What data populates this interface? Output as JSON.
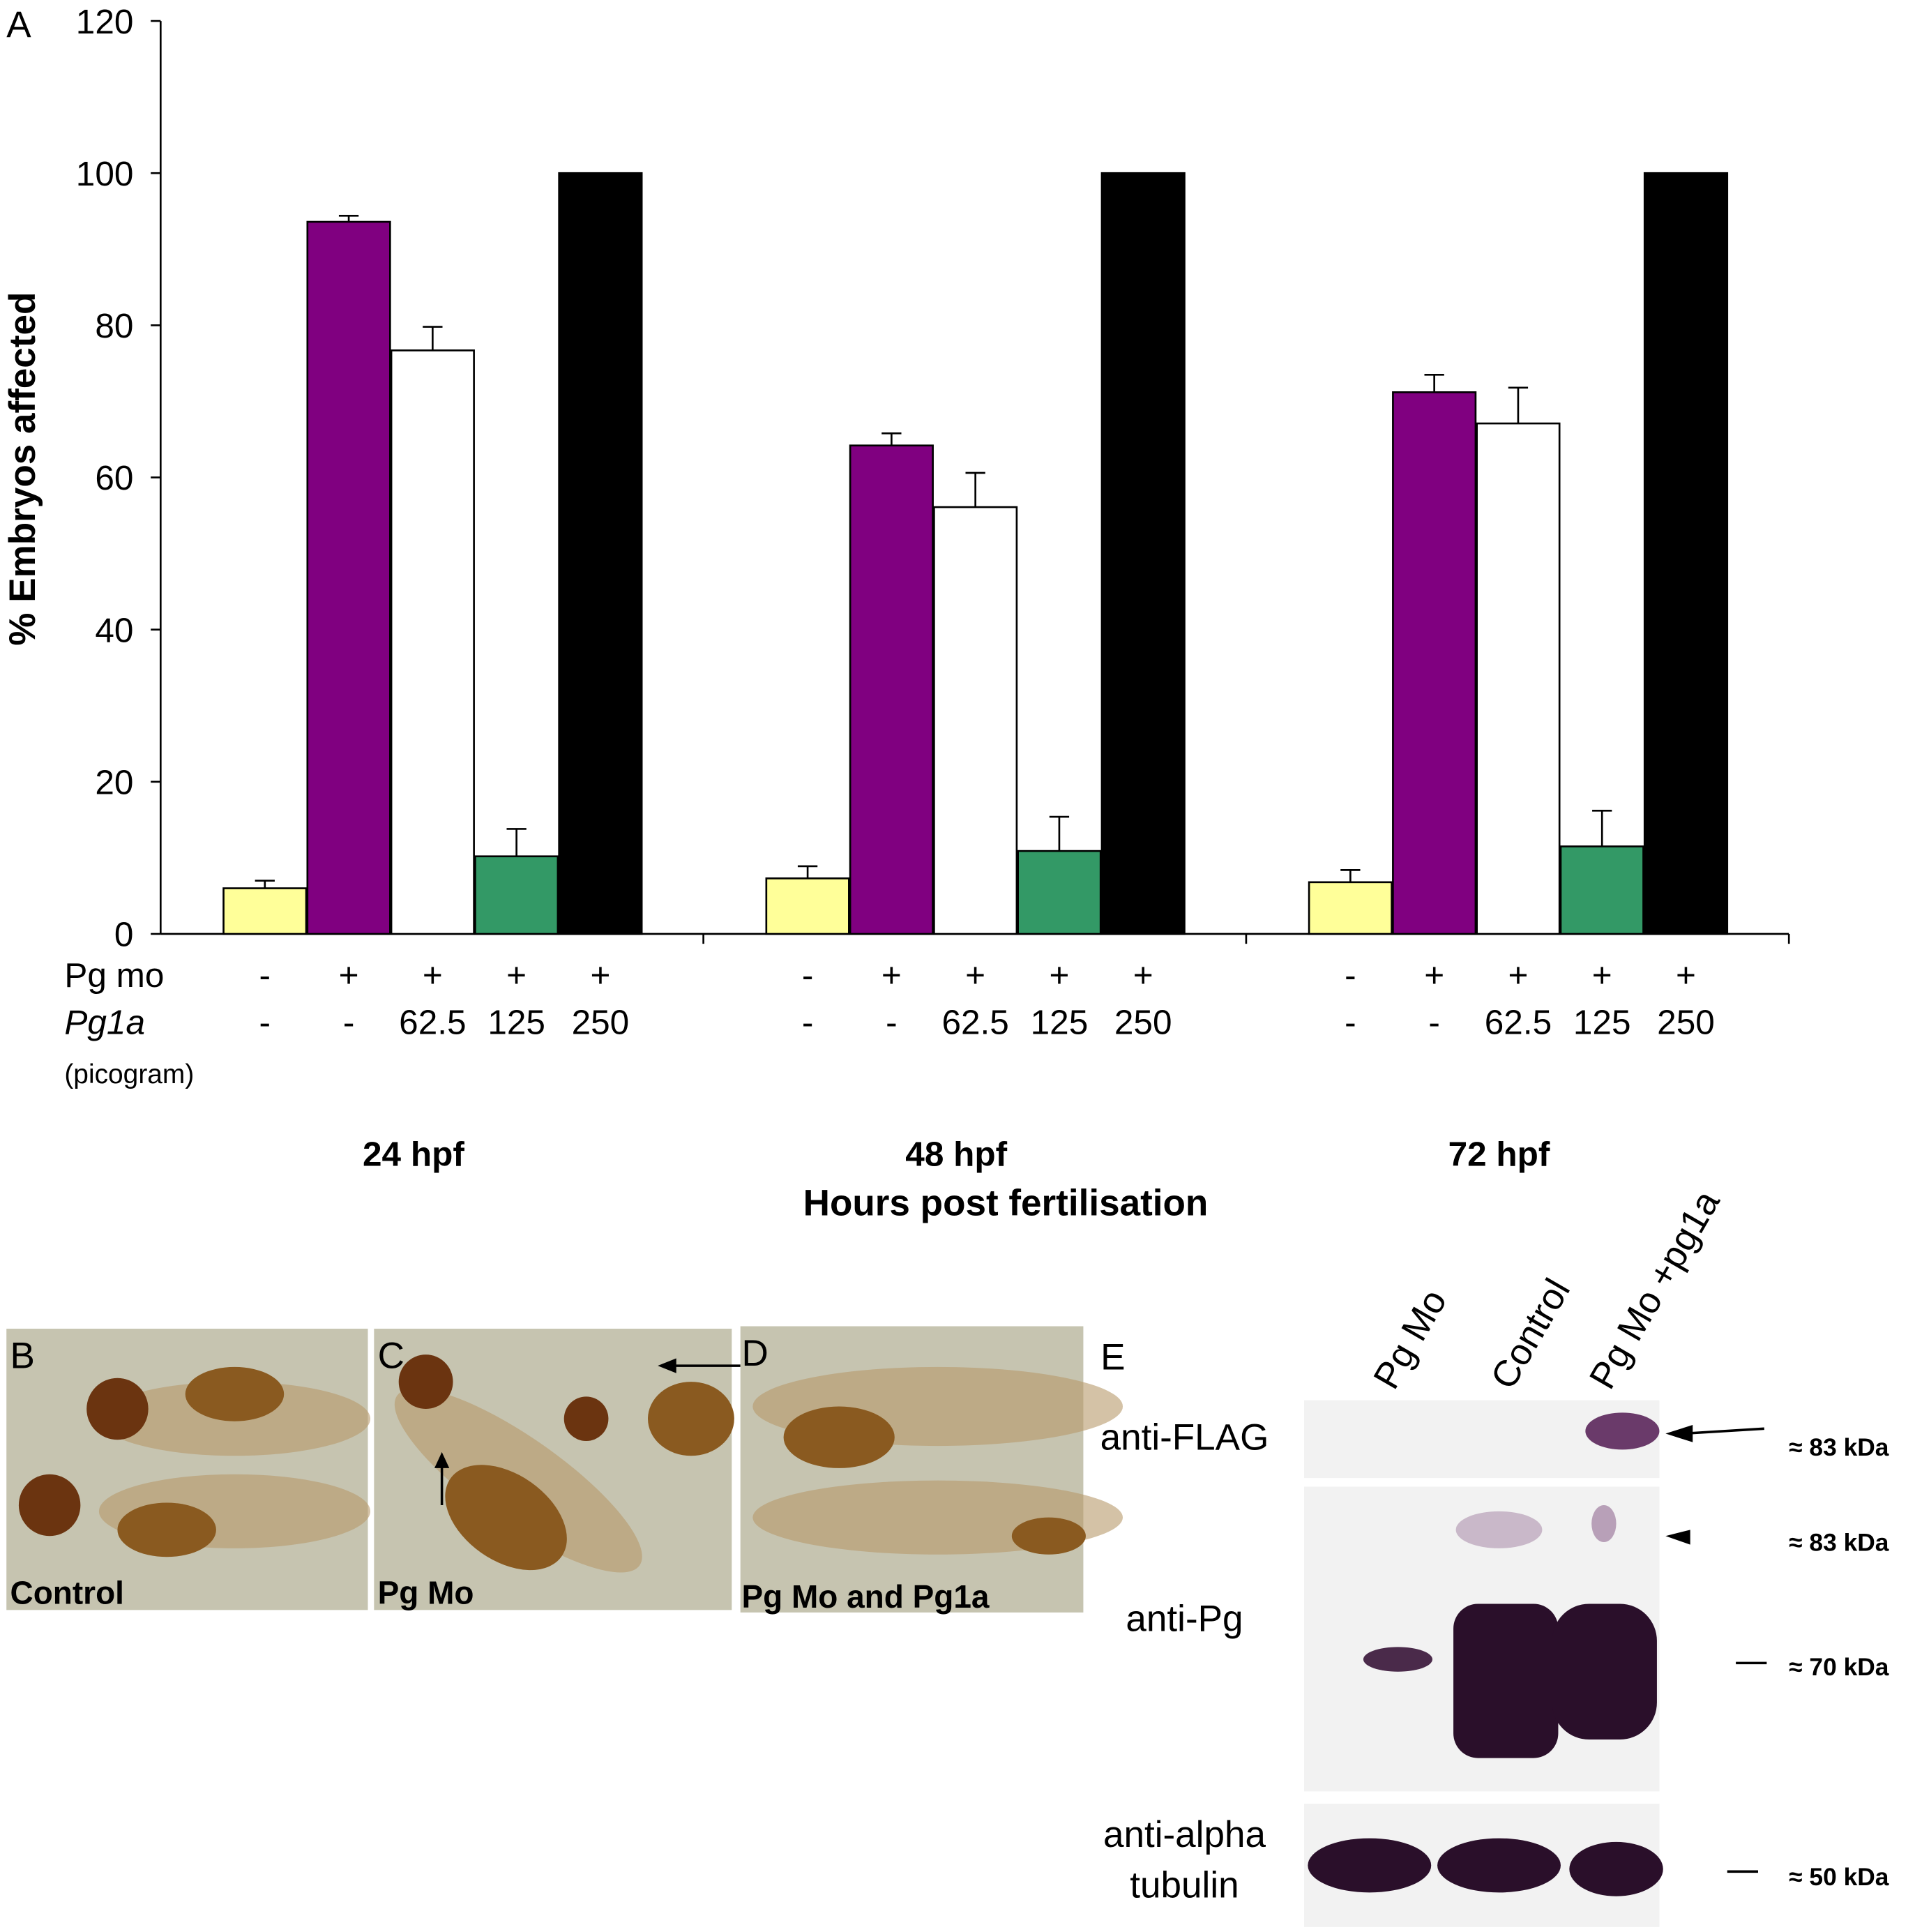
{
  "chart_data": {
    "type": "bar",
    "panel_label": "A",
    "ylabel": "% Embryos affected",
    "xlabel": "Hours post fertilisation",
    "categories": [
      "24 hpf",
      "48 hpf",
      "72 hpf"
    ],
    "series": [
      {
        "color": "#ffff99",
        "values": [
          6.0,
          7.3,
          6.8
        ],
        "errors": [
          1.0,
          1.6,
          1.6
        ]
      },
      {
        "color": "#800080",
        "values": [
          93.6,
          64.2,
          71.2
        ],
        "errors": [
          0.8,
          1.6,
          2.3
        ]
      },
      {
        "color": "#ffffff",
        "values": [
          76.7,
          56.1,
          67.1
        ],
        "errors": [
          3.1,
          4.5,
          4.7
        ]
      },
      {
        "color": "#339966",
        "values": [
          10.2,
          10.9,
          11.5
        ],
        "errors": [
          3.6,
          4.5,
          4.7
        ]
      },
      {
        "color": "#000000",
        "values": [
          100,
          100,
          100
        ],
        "errors": [
          null,
          null,
          null
        ]
      }
    ],
    "ylim": [
      0,
      120
    ],
    "yticks": [
      0,
      20,
      40,
      60,
      80,
      100,
      120
    ],
    "conditions": [
      {
        "label": "Pg mo",
        "values": [
          "-",
          "+",
          "+",
          "+",
          "+"
        ]
      },
      {
        "label": "Pg1a",
        "unit": "(picogram)",
        "values": [
          "-",
          "-",
          "62.5",
          "125",
          "250"
        ]
      }
    ]
  },
  "images": [
    {
      "panel": "B",
      "caption": "Control"
    },
    {
      "panel": "C",
      "caption": "Pg Mo"
    },
    {
      "panel": "D",
      "caption": "Pg Mo and Pg1a"
    }
  ],
  "blot": {
    "panel": "E",
    "lanes": [
      "Pg Mo",
      "Control",
      "Pg Mo +pg1a"
    ],
    "rows": [
      {
        "label": [
          "anti-FLAG"
        ],
        "markers": [
          "≈ 83 kDa"
        ]
      },
      {
        "label": [
          "anti-Pg"
        ],
        "markers": [
          "≈ 83 kDa",
          "≈ 70 kDa"
        ]
      },
      {
        "label": [
          "anti-alpha",
          "tubulin"
        ],
        "markers": [
          "≈ 50 kDa"
        ]
      }
    ]
  }
}
